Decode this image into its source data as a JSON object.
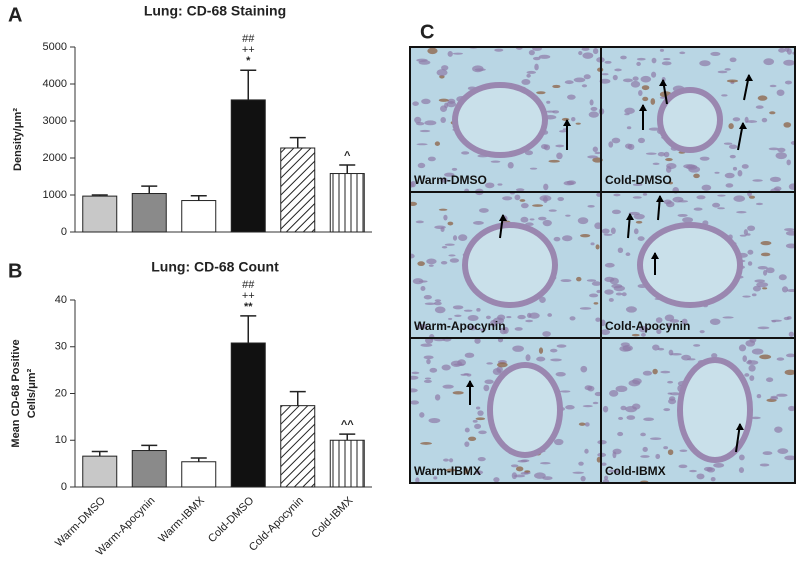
{
  "chart_data": [
    {
      "type": "bar",
      "panel_label": "A",
      "title": "Lung: CD-68 Staining",
      "ylabel": [
        "Density/μm²"
      ],
      "values": [
        970,
        1040,
        850,
        3570,
        2270,
        1580
      ],
      "errors": [
        30,
        200,
        130,
        800,
        280,
        230
      ],
      "fills": [
        "#c8c8c8",
        "#8a8a8a",
        "#ffffff",
        "#111111",
        "diagonal",
        "vertical"
      ],
      "annotations": [
        null,
        null,
        null,
        [
          "##",
          "++",
          "*"
        ],
        null,
        [
          "^"
        ]
      ],
      "ylim": [
        0,
        5000
      ],
      "yticks": [
        0,
        1000,
        2000,
        3000,
        4000,
        5000
      ]
    },
    {
      "type": "bar",
      "panel_label": "B",
      "title": "Lung: CD-68 Count",
      "ylabel": [
        "Mean CD-68 Positive",
        "Cells/μm²"
      ],
      "categories": [
        "Warm-DMSO",
        "Warm-Apocynin",
        "Warm-IBMX",
        "Cold-DMSO",
        "Cold-Apocynin",
        "Cold-IBMX"
      ],
      "values": [
        6.6,
        7.8,
        5.4,
        30.8,
        17.4,
        10.0
      ],
      "errors": [
        1.0,
        1.1,
        0.8,
        5.8,
        3.0,
        1.3
      ],
      "fills": [
        "#c8c8c8",
        "#8a8a8a",
        "#ffffff",
        "#111111",
        "diagonal",
        "vertical"
      ],
      "annotations": [
        null,
        null,
        null,
        [
          "##",
          "++",
          "**"
        ],
        null,
        [
          "^^"
        ]
      ],
      "ylim": [
        0,
        40
      ],
      "yticks": [
        0,
        10,
        20,
        30,
        40
      ]
    }
  ],
  "micrographs": {
    "panel_label": "C",
    "captions": [
      "Warm-DMSO",
      "Cold-DMSO",
      "Warm-Apocynin",
      "Cold-Apocynin",
      "Warm-IBMX",
      "Cold-IBMX"
    ]
  }
}
